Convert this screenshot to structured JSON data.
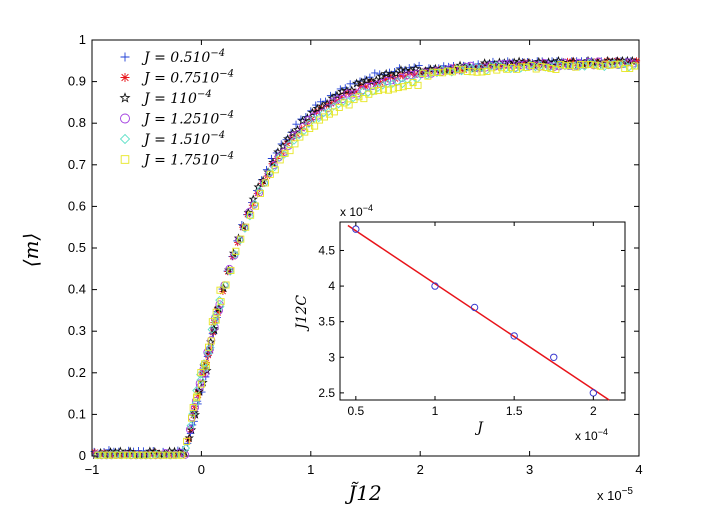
{
  "chart_data": [
    {
      "type": "scatter",
      "name": "main",
      "xlabel": "J̃12",
      "ylabel": "⟨m⟩",
      "xlim": [
        -1,
        4
      ],
      "ylim": [
        0,
        1
      ],
      "x_ticks": [
        "−1",
        "0",
        "1",
        "2",
        "3",
        "4"
      ],
      "y_ticks": [
        "0",
        "0.1",
        "0.2",
        "0.3",
        "0.4",
        "0.5",
        "0.6",
        "0.7",
        "0.8",
        "0.9",
        "1"
      ],
      "x_exponent": "x 10",
      "x_exponent_power": "−5",
      "legend_position": "top-left",
      "series": [
        {
          "name": "J = 0.510",
          "exp": "−4",
          "marker": "plus",
          "color": "#1f3fd6",
          "shift": 0.04
        },
        {
          "name": "J = 0.7510",
          "exp": "−4",
          "marker": "asterisk",
          "color": "#e8141a",
          "shift": 0.0
        },
        {
          "name": "J = 110",
          "exp": "−4",
          "marker": "star",
          "color": "#111111",
          "shift": 0.02
        },
        {
          "name": "J = 1.2510",
          "exp": "−4",
          "marker": "circle",
          "color": "#a23ee0",
          "shift": -0.01
        },
        {
          "name": "J = 1.510",
          "exp": "−4",
          "marker": "diamond",
          "color": "#5fe0c8",
          "shift": -0.03
        },
        {
          "name": "J = 1.7510",
          "exp": "−4",
          "marker": "square",
          "color": "#e6e622",
          "shift": -0.05
        }
      ]
    },
    {
      "type": "scatter",
      "name": "inset",
      "xlabel": "J",
      "ylabel": "J12C",
      "y_exponent": "x 10",
      "y_exponent_power": "−4",
      "x_exponent": "x 10",
      "x_exponent_power": "−4",
      "xlim": [
        0.4,
        2.2
      ],
      "ylim": [
        2.4,
        4.9
      ],
      "x_ticks": [
        "0.5",
        "1",
        "1.5",
        "2"
      ],
      "y_ticks": [
        "2.5",
        "3",
        "3.5",
        "4",
        "4.5"
      ],
      "points": [
        [
          0.5,
          4.8
        ],
        [
          1.0,
          4.0
        ],
        [
          1.25,
          3.7
        ],
        [
          1.5,
          3.3
        ],
        [
          1.75,
          3.0
        ],
        [
          2.0,
          2.5
        ]
      ],
      "fit_line": [
        [
          0.45,
          4.85
        ],
        [
          2.1,
          2.4
        ]
      ],
      "point_color": "#3a3ad0",
      "line_color": "#e8141a"
    }
  ]
}
